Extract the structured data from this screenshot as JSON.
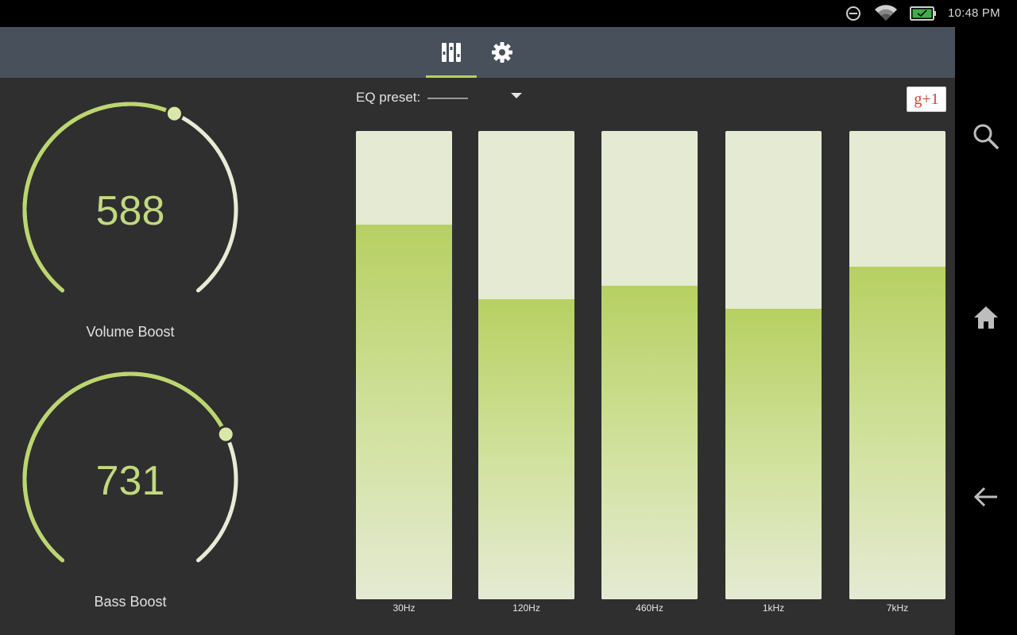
{
  "status_bar": {
    "time": "10:48 PM",
    "icons": [
      "do-not-disturb-icon",
      "wifi-icon",
      "battery-charging-icon"
    ]
  },
  "action_bar": {
    "tabs": [
      {
        "icon": "equalizer-icon",
        "selected": true
      },
      {
        "icon": "settings-gear-icon",
        "selected": false
      }
    ],
    "accent_color": "#b5cf62",
    "background_color": "#47505b"
  },
  "dials": {
    "volume": {
      "value": "588",
      "label": "Volume Boost",
      "level": 0.588
    },
    "bass": {
      "value": "731",
      "label": "Bass Boost",
      "level": 0.731
    }
  },
  "eq": {
    "preset_label": "EQ preset:",
    "preset_value": "———",
    "gplus_label": "g+1",
    "bands": [
      {
        "freq": "30Hz",
        "level": 0.8
      },
      {
        "freq": "120Hz",
        "level": 0.64
      },
      {
        "freq": "460Hz",
        "level": 0.67
      },
      {
        "freq": "1kHz",
        "level": 0.62
      },
      {
        "freq": "7kHz",
        "level": 0.71
      }
    ]
  },
  "navigation_bar": {
    "buttons": [
      "search-icon",
      "home-icon",
      "back-icon"
    ]
  }
}
